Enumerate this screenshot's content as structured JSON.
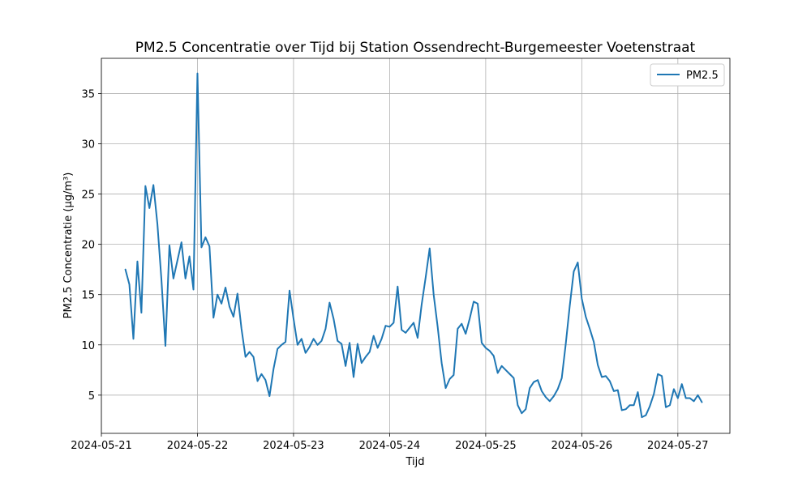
{
  "chart_data": {
    "type": "line",
    "title": "PM2.5 Concentratie over Tijd bij Station Ossendrecht-Burgemeester Voetenstraat",
    "xlabel": "Tijd",
    "ylabel": "PM2.5 Concentratie (µg/m³)",
    "xlim": [
      "2024-05-21 00:00",
      "2024-05-27 13:00"
    ],
    "ylim": [
      1.2,
      38.5
    ],
    "xticks": [
      "2024-05-21",
      "2024-05-22",
      "2024-05-23",
      "2024-05-24",
      "2024-05-25",
      "2024-05-26",
      "2024-05-27"
    ],
    "yticks": [
      "5",
      "10",
      "15",
      "20",
      "25",
      "30",
      "35"
    ],
    "grid": true,
    "legend_position": "top-right",
    "x_start": "2024-05-21 06:00",
    "x_step_hours": 1,
    "series": [
      {
        "name": "PM2.5",
        "color": "#1f77b4",
        "values": [
          17.5,
          16.0,
          10.6,
          18.3,
          13.2,
          25.8,
          23.6,
          25.9,
          22.0,
          16.5,
          9.9,
          19.9,
          16.6,
          18.4,
          20.2,
          16.6,
          18.8,
          15.5,
          37.0,
          19.7,
          20.7,
          19.8,
          12.7,
          15.0,
          14.1,
          15.7,
          13.8,
          12.8,
          15.1,
          11.6,
          8.8,
          9.3,
          8.8,
          6.4,
          7.1,
          6.5,
          4.9,
          7.6,
          9.6,
          10.0,
          10.3,
          15.4,
          12.6,
          10.0,
          10.6,
          9.2,
          9.8,
          10.6,
          10.0,
          10.4,
          11.6,
          14.2,
          12.6,
          10.4,
          10.1,
          7.9,
          10.2,
          6.8,
          10.1,
          8.2,
          8.8,
          9.3,
          10.9,
          9.7,
          10.6,
          11.9,
          11.8,
          12.2,
          15.8,
          11.5,
          11.2,
          11.7,
          12.2,
          10.7,
          14.0,
          16.7,
          19.6,
          15.0,
          11.8,
          8.2,
          5.7,
          6.6,
          7.0,
          11.6,
          12.1,
          11.1,
          12.6,
          14.3,
          14.1,
          10.2,
          9.7,
          9.4,
          8.9,
          7.2,
          7.9,
          7.5,
          7.1,
          6.7,
          4.0,
          3.2,
          3.6,
          5.7,
          6.3,
          6.5,
          5.4,
          4.8,
          4.4,
          4.9,
          5.6,
          6.7,
          10.1,
          13.9,
          17.3,
          18.2,
          14.6,
          12.8,
          11.6,
          10.3,
          8.0,
          6.8,
          6.9,
          6.4,
          5.4,
          5.5,
          3.5,
          3.6,
          4.0,
          4.0,
          5.3,
          2.8,
          3.0,
          3.9,
          5.1,
          7.1,
          6.9,
          3.8,
          4.0,
          5.6,
          4.7,
          6.1,
          4.7,
          4.7,
          4.4,
          5.0,
          4.3
        ]
      }
    ]
  }
}
